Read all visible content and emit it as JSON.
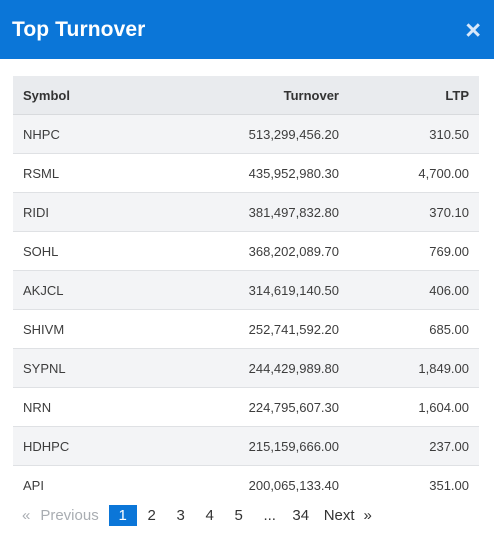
{
  "modal": {
    "title": "Top Turnover",
    "close_icon": "×"
  },
  "table": {
    "headers": [
      "Symbol",
      "Turnover",
      "LTP"
    ],
    "rows": [
      {
        "symbol": "NHPC",
        "turnover": "513,299,456.20",
        "ltp": "310.50"
      },
      {
        "symbol": "RSML",
        "turnover": "435,952,980.30",
        "ltp": "4,700.00"
      },
      {
        "symbol": "RIDI",
        "turnover": "381,497,832.80",
        "ltp": "370.10"
      },
      {
        "symbol": "SOHL",
        "turnover": "368,202,089.70",
        "ltp": "769.00"
      },
      {
        "symbol": "AKJCL",
        "turnover": "314,619,140.50",
        "ltp": "406.00"
      },
      {
        "symbol": "SHIVM",
        "turnover": "252,741,592.20",
        "ltp": "685.00"
      },
      {
        "symbol": "SYPNL",
        "turnover": "244,429,989.80",
        "ltp": "1,849.00"
      },
      {
        "symbol": "NRN",
        "turnover": "224,795,607.30",
        "ltp": "1,604.00"
      },
      {
        "symbol": "HDHPC",
        "turnover": "215,159,666.00",
        "ltp": "237.00"
      },
      {
        "symbol": "API",
        "turnover": "200,065,133.40",
        "ltp": "351.00"
      }
    ]
  },
  "pagination": {
    "prev_icon": "«",
    "prev_label": "Previous",
    "pages": [
      "1",
      "2",
      "3",
      "4",
      "5"
    ],
    "ellipsis": "...",
    "last_page": "34",
    "next_label": "Next",
    "next_icon": "»",
    "current_page": "1"
  },
  "colors": {
    "header_bg": "#0b76d8",
    "active_page_bg": "#0b76d8"
  }
}
